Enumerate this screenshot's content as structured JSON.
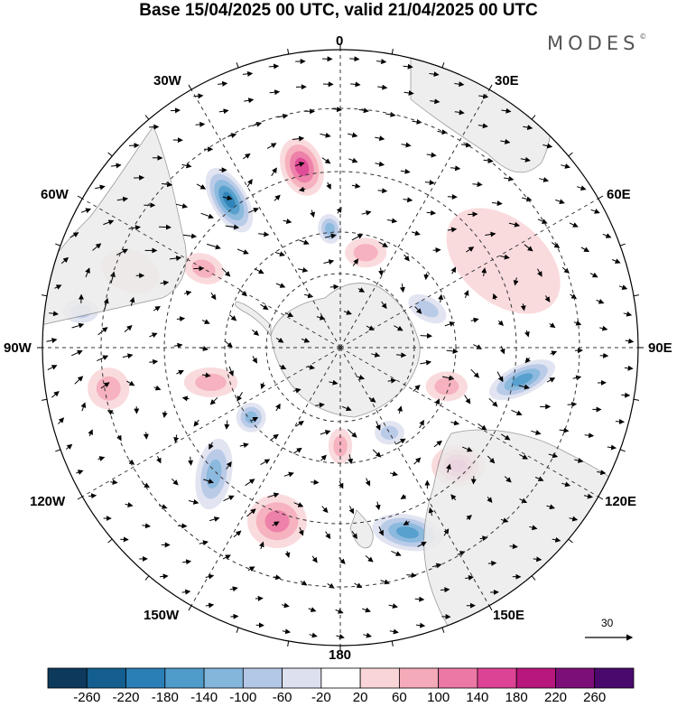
{
  "title": "Base 15/04/2025 00 UTC, valid 21/04/2025 00 UTC",
  "brand": "MODES",
  "brand_mark": "©",
  "longitude_labels": {
    "lon_0": "0",
    "lon_30e": "30E",
    "lon_60e": "60E",
    "lon_90e": "90E",
    "lon_120e": "120E",
    "lon_150e": "150E",
    "lon_180": "180",
    "lon_150w": "150W",
    "lon_120w": "120W",
    "lon_90w": "90W",
    "lon_60w": "60W",
    "lon_30w": "30W"
  },
  "vector_scale_label": "30",
  "colorbar": {
    "ticks": [
      "-260",
      "-220",
      "-180",
      "-140",
      "-100",
      "-60",
      "-20",
      "20",
      "60",
      "100",
      "140",
      "180",
      "220",
      "260"
    ],
    "colors": [
      "#0d3a5c",
      "#145f8f",
      "#2a7fb6",
      "#4f9bca",
      "#84b6dc",
      "#b3c7e6",
      "#dde0ef",
      "#ffffff",
      "#f9d5d7",
      "#f4aab8",
      "#ec78a6",
      "#dd4394",
      "#b8177d",
      "#7d0f79",
      "#4a0a6d"
    ]
  },
  "anomaly_centers": [
    {
      "lon": -37,
      "lat_ring": 0.62,
      "value": -180,
      "rx": 0.12,
      "ry": 0.06,
      "rot": 60
    },
    {
      "lon": -12,
      "lat_ring": 0.62,
      "value": 140,
      "rx": 0.1,
      "ry": 0.07,
      "rot": 70
    },
    {
      "lon": -5,
      "lat_ring": 0.4,
      "value": -100,
      "rx": 0.05,
      "ry": 0.04,
      "rot": 80
    },
    {
      "lon": 15,
      "lat_ring": 0.33,
      "value": 60,
      "rx": 0.07,
      "ry": 0.05,
      "rot": 0
    },
    {
      "lon": 62,
      "lat_ring": 0.62,
      "value": 20,
      "rx": 0.22,
      "ry": 0.14,
      "rot": 40
    },
    {
      "lon": 66,
      "lat_ring": 0.32,
      "value": -60,
      "rx": 0.07,
      "ry": 0.04,
      "rot": 30
    },
    {
      "lon": 100,
      "lat_ring": 0.62,
      "value": -140,
      "rx": 0.12,
      "ry": 0.05,
      "rot": -25
    },
    {
      "lon": 110,
      "lat_ring": 0.38,
      "value": 60,
      "rx": 0.07,
      "ry": 0.05,
      "rot": 0
    },
    {
      "lon": 135,
      "lat_ring": 0.56,
      "value": 140,
      "rx": 0.09,
      "ry": 0.07,
      "rot": 0
    },
    {
      "lon": 160,
      "lat_ring": 0.66,
      "value": -140,
      "rx": 0.12,
      "ry": 0.06,
      "rot": 10
    },
    {
      "lon": 150,
      "lat_ring": 0.33,
      "value": -60,
      "rx": 0.05,
      "ry": 0.04,
      "rot": 0
    },
    {
      "lon": 180,
      "lat_ring": 0.33,
      "value": 60,
      "rx": 0.04,
      "ry": 0.06,
      "rot": 0
    },
    {
      "lon": -160,
      "lat_ring": 0.62,
      "value": 100,
      "rx": 0.1,
      "ry": 0.09,
      "rot": 0
    },
    {
      "lon": -135,
      "lat_ring": 0.6,
      "value": -100,
      "rx": 0.06,
      "ry": 0.12,
      "rot": 10
    },
    {
      "lon": -128,
      "lat_ring": 0.38,
      "value": -100,
      "rx": 0.05,
      "ry": 0.05,
      "rot": 0
    },
    {
      "lon": -105,
      "lat_ring": 0.45,
      "value": 60,
      "rx": 0.09,
      "ry": 0.05,
      "rot": 0
    },
    {
      "lon": -100,
      "lat_ring": 0.79,
      "value": 60,
      "rx": 0.07,
      "ry": 0.07,
      "rot": 0
    },
    {
      "lon": -82,
      "lat_ring": 0.88,
      "value": -60,
      "rx": 0.06,
      "ry": 0.04,
      "rot": 0
    },
    {
      "lon": -60,
      "lat_ring": 0.53,
      "value": 60,
      "rx": 0.07,
      "ry": 0.05,
      "rot": 20
    },
    {
      "lon": -70,
      "lat_ring": 0.75,
      "value": 20,
      "rx": 0.1,
      "ry": 0.07,
      "rot": 20
    }
  ]
}
